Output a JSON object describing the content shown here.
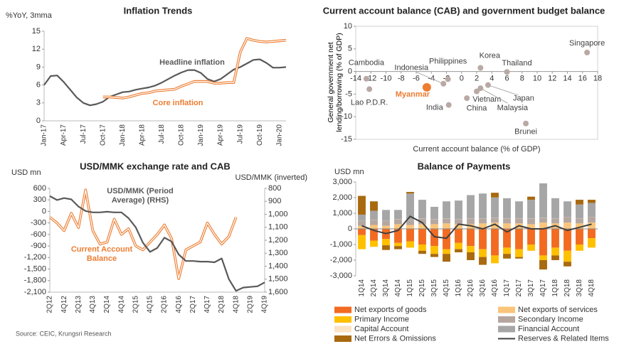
{
  "chart_data": [
    {
      "type": "line",
      "title": "Inflation Trends",
      "ylabel": "%YoY, 3mma",
      "categories": [
        "Jan-17",
        null,
        null,
        "Apr-17",
        null,
        null,
        "Jul-17",
        null,
        null,
        "Oct-17",
        null,
        null,
        "Jan-18",
        null,
        null,
        "Apr-18",
        null,
        null,
        "Jul-18",
        null,
        null,
        "Oct-18",
        null,
        null,
        "Jan-19",
        null,
        null,
        "Apr-19",
        null,
        null,
        "Jul-19",
        null,
        null,
        "Oct-19",
        null,
        null,
        "Jan-20",
        null
      ],
      "series": [
        {
          "name": "Headline inflation",
          "color": "#595959",
          "values": [
            6.0,
            7.5,
            7.6,
            6.5,
            5.2,
            3.9,
            3.0,
            2.6,
            2.8,
            3.2,
            4.0,
            4.4,
            4.8,
            4.9,
            5.2,
            5.4,
            5.6,
            5.9,
            6.4,
            7.0,
            7.6,
            8.1,
            8.5,
            8.5,
            8.0,
            7.0,
            6.6,
            7.0,
            7.8,
            8.6,
            9.0,
            9.6,
            10.2,
            10.3,
            9.7,
            8.9,
            8.9,
            9.0
          ]
        },
        {
          "name": "Core inflation",
          "color": "#ed7d31",
          "line_style": "double",
          "values": [
            null,
            null,
            null,
            null,
            null,
            null,
            null,
            null,
            null,
            4.0,
            4.0,
            3.9,
            3.8,
            4.0,
            4.3,
            4.6,
            4.7,
            5.0,
            5.1,
            5.2,
            5.3,
            5.8,
            6.2,
            6.6,
            6.6,
            6.6,
            6.3,
            6.3,
            6.4,
            6.4,
            11.5,
            13.8,
            13.5,
            13.3,
            13.2,
            13.3,
            13.4,
            13.5
          ]
        }
      ],
      "ylim": [
        0,
        15
      ],
      "yticks": [
        0,
        3,
        6,
        9,
        12,
        15
      ]
    },
    {
      "type": "scatter",
      "title": "Current account balance (CAB) and government budget balance",
      "xlabel": "Current account balance (% of GDP)",
      "ylabel": "General government net lending/borrowing (% of GDP)",
      "points": {
        "labels": [
          "Cambodia",
          "Lao P.D.R.",
          "Indonesia",
          "Philippines",
          "Myanmar",
          "Korea",
          "Thailand",
          "Singapore",
          "Vietnam",
          "Japan",
          "China",
          "Malaysia",
          "India",
          "Brunei"
        ],
        "x": [
          -12.6,
          -12.2,
          -2.4,
          -1.8,
          -4.6,
          2.5,
          6.0,
          16.6,
          0.7,
          3.5,
          2.0,
          2.5,
          -1.7,
          8.5
        ],
        "y": [
          -1.6,
          -3.9,
          -2.7,
          -1.7,
          -3.5,
          0.8,
          -0.1,
          4.2,
          -5.9,
          -3.0,
          -4.4,
          -3.7,
          -7.4,
          -11.5
        ],
        "colors": [
          "#b9a9a5",
          "#b9a9a5",
          "#b9a9a5",
          "#b9a9a5",
          "#ed7d31",
          "#b9a9a5",
          "#b9a9a5",
          "#b9a9a5",
          "#b9a9a5",
          "#b9a9a5",
          "#b9a9a5",
          "#b9a9a5",
          "#b9a9a5",
          "#b9a9a5"
        ]
      },
      "xlim": [
        -14,
        18
      ],
      "xticks": [
        -14,
        -12,
        -10,
        -8,
        -6,
        -4,
        -2,
        0,
        2,
        4,
        6,
        8,
        10,
        12,
        14,
        16,
        18
      ],
      "ylim": [
        -15,
        10
      ],
      "yticks": [
        -15,
        -10,
        -5,
        0,
        5,
        10
      ]
    },
    {
      "type": "line",
      "title": "USD/MMK exchange rate and CAB",
      "ylabel": "USD mn",
      "y2label": "USD/MMK (inverted)",
      "categories": [
        "2Q12",
        null,
        "4Q12",
        null,
        "2Q13",
        null,
        "4Q13",
        null,
        "2Q14",
        null,
        "4Q14",
        null,
        "2Q15",
        null,
        "4Q15",
        null,
        "2Q16",
        null,
        "4Q16",
        null,
        "2Q17",
        null,
        "4Q17",
        null,
        "2Q18",
        null,
        "4Q18",
        null,
        "2Q19",
        null,
        "4Q19"
      ],
      "series": [
        {
          "name": "Current Account Balance",
          "color": "#ed7d31",
          "line_style": "double",
          "values": [
            -150,
            -300,
            -500,
            -50,
            -420,
            560,
            -500,
            -850,
            -800,
            -200,
            -600,
            -450,
            -900,
            -1000,
            -800,
            -600,
            -350,
            -700,
            -1750,
            -1000,
            -900,
            -800,
            -300,
            -600,
            -850,
            -650,
            -150,
            null,
            null,
            null,
            null
          ]
        },
        {
          "name": "USD/MMK (Period Average) (RHS)",
          "color": "#595959",
          "axis": "y2",
          "values": [
            860,
            890,
            875,
            885,
            940,
            975,
            985,
            985,
            980,
            985,
            985,
            1030,
            1100,
            1220,
            1290,
            1260,
            1180,
            1210,
            1310,
            1360,
            1360,
            1365,
            1365,
            1370,
            1340,
            1500,
            1590,
            1565,
            1560,
            1555,
            1525
          ]
        }
      ],
      "ylim": [
        -2100,
        600
      ],
      "yticks": [
        {
          "value": -2100,
          "label": "-2,100"
        },
        {
          "value": -1800,
          "label": "-1,800"
        },
        {
          "value": -1500,
          "label": "-1,500"
        },
        {
          "value": -1200,
          "label": "-1,200"
        },
        -900,
        -600,
        -300,
        0,
        300,
        600
      ],
      "y2lim": [
        1600,
        800
      ],
      "y2ticks": [
        800,
        900,
        {
          "value": 1000,
          "label": "1,000"
        },
        {
          "value": 1100,
          "label": "1,100"
        },
        {
          "value": 1200,
          "label": "1,200"
        },
        {
          "value": 1300,
          "label": "1,300"
        },
        {
          "value": 1400,
          "label": "1,400"
        },
        {
          "value": 1500,
          "label": "1,500"
        },
        {
          "value": 1600,
          "label": "1,600"
        }
      ]
    },
    {
      "type": "stacked_bar",
      "title": "Balance of Payments",
      "ylabel": "USD mn",
      "categories": [
        "1Q14",
        "2Q14",
        "3Q14",
        "4Q14",
        "1Q15",
        "2Q15",
        "3Q15",
        "4Q15",
        "1Q16",
        "2Q16",
        "3Q16",
        "4Q16",
        "1Q17",
        "2Q17",
        "3Q17",
        "4Q17",
        "1Q18",
        "2Q18",
        "3Q18",
        "4Q18"
      ],
      "series": [
        {
          "name": "Net exports of goods",
          "color": "#f26b21",
          "values": [
            -400,
            -750,
            -650,
            -900,
            -800,
            -1000,
            -1100,
            -1300,
            -900,
            -1100,
            -1300,
            -1700,
            -1200,
            -1300,
            -1000,
            -1700,
            -1200,
            -1400,
            -1000,
            -600
          ]
        },
        {
          "name": "Net exports of services",
          "color": "#fac57a",
          "values": [
            200,
            250,
            200,
            300,
            250,
            300,
            300,
            350,
            300,
            300,
            350,
            400,
            350,
            350,
            300,
            400,
            350,
            400,
            350,
            400
          ]
        },
        {
          "name": "Primary Income",
          "color": "#ffc000",
          "values": [
            -900,
            -400,
            -400,
            -200,
            -400,
            -400,
            -500,
            -300,
            -400,
            -400,
            -500,
            -500,
            -400,
            -500,
            -400,
            -300,
            -500,
            -700,
            -400,
            -600
          ]
        },
        {
          "name": "Secondary Income",
          "color": "#b5a7a0",
          "values": [
            300,
            300,
            300,
            300,
            300,
            350,
            300,
            300,
            300,
            350,
            300,
            300,
            300,
            300,
            350,
            300,
            300,
            350,
            300,
            350
          ]
        },
        {
          "name": "Capital Account",
          "color": "#fbe3c4",
          "values": [
            10,
            10,
            10,
            10,
            10,
            10,
            10,
            10,
            10,
            10,
            10,
            10,
            10,
            10,
            10,
            10,
            10,
            10,
            10,
            10
          ]
        },
        {
          "name": "Financial Account",
          "color": "#a6a6a6",
          "values": [
            400,
            600,
            700,
            600,
            1700,
            1200,
            800,
            1100,
            1200,
            1500,
            1600,
            1300,
            1300,
            1100,
            1200,
            2200,
            1300,
            1000,
            900,
            900
          ]
        },
        {
          "name": "Net Errors & Omissions",
          "color": "#a8690f",
          "values": [
            1200,
            600,
            -300,
            -200,
            100,
            -200,
            -200,
            -500,
            -200,
            -500,
            -500,
            300,
            -300,
            -100,
            200,
            -600,
            -300,
            -300,
            300,
            200
          ]
        },
        {
          "name": "Reserves & Related Items",
          "color": "#404040",
          "type": "line",
          "values": [
            200,
            -100,
            -300,
            -100,
            800,
            400,
            -500,
            -600,
            300,
            200,
            0,
            300,
            -200,
            200,
            0,
            0,
            200,
            -100,
            100,
            300
          ]
        }
      ],
      "ylim": [
        -3000,
        3000
      ],
      "yticks": [
        {
          "value": -3000,
          "label": "-3,000"
        },
        {
          "value": -2000,
          "label": "-2,000"
        },
        {
          "value": -1000,
          "label": "-1,000"
        },
        0,
        {
          "value": 1000,
          "label": "1,000"
        },
        {
          "value": 2000,
          "label": "2,000"
        },
        {
          "value": 3000,
          "label": "3,000"
        }
      ]
    }
  ],
  "source": "Source: CEIC, Krungsri Research"
}
